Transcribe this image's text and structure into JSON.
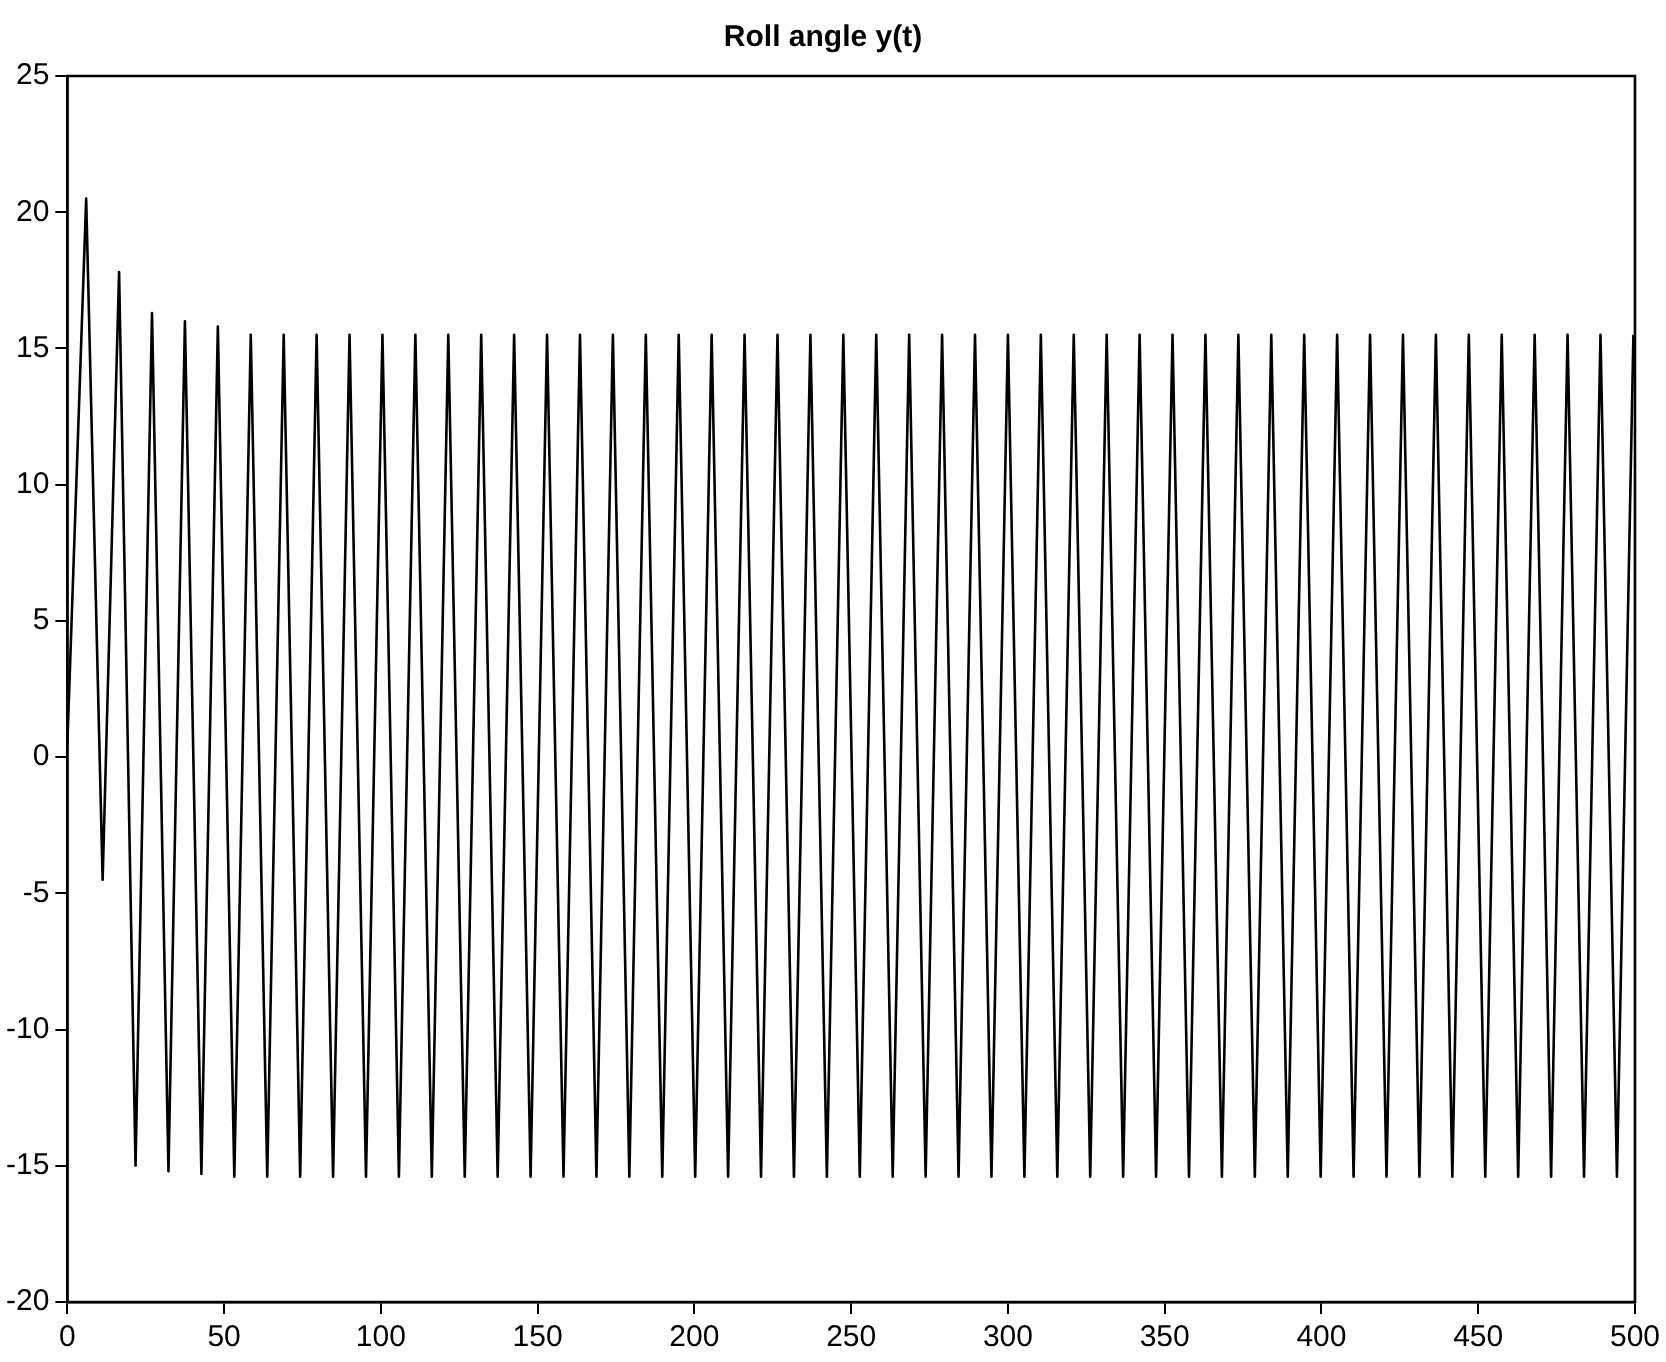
{
  "chart_data": {
    "type": "line",
    "title": "Roll angle y(t)",
    "x": [
      0,
      6,
      11.25,
      16.5,
      21.75,
      27,
      32.25,
      37.5,
      42.75,
      48,
      53.25,
      58.5,
      63.75,
      69,
      74.25,
      79.5,
      84.75,
      90,
      95.25,
      100.5,
      105.75,
      111,
      116.25,
      121.5,
      126.75,
      132,
      137.25,
      142.5,
      147.75,
      153,
      158.25,
      163.5,
      168.75,
      174,
      179.25,
      184.5,
      189.75,
      195,
      200.25,
      205.5,
      210.75,
      216,
      221.25,
      226.5,
      231.75,
      237,
      242.25,
      247.5,
      252.75,
      258,
      263.25,
      268.5,
      273.75,
      279,
      284.25,
      289.5,
      294.75,
      300,
      305.25,
      310.5,
      315.75,
      321,
      326.25,
      331.5,
      336.75,
      342,
      347.25,
      352.5,
      357.75,
      363,
      368.25,
      373.5,
      378.75,
      384,
      389.25,
      394.5,
      399.75,
      405,
      410.25,
      415.5,
      420.75,
      426,
      431.25,
      436.5,
      441.75,
      447,
      452.25,
      457.5,
      462.75,
      468,
      473.25,
      478.5,
      483.75,
      489,
      494.25,
      499.5
    ],
    "series": [
      {
        "color": "#000000",
        "values": [
          0.5,
          20.5,
          -4.5,
          17.8,
          -15.0,
          16.3,
          -15.2,
          16.0,
          -15.3,
          15.8,
          -15.4,
          15.5,
          -15.4,
          15.5,
          -15.4,
          15.5,
          -15.4,
          15.5,
          -15.4,
          15.5,
          -15.4,
          15.5,
          -15.4,
          15.5,
          -15.4,
          15.5,
          -15.4,
          15.5,
          -15.4,
          15.5,
          -15.4,
          15.5,
          -15.4,
          15.5,
          -15.4,
          15.5,
          -15.4,
          15.5,
          -15.4,
          15.5,
          -15.4,
          15.5,
          -15.4,
          15.5,
          -15.4,
          15.5,
          -15.4,
          15.5,
          -15.4,
          15.5,
          -15.4,
          15.5,
          -15.4,
          15.5,
          -15.4,
          15.5,
          -15.4,
          15.5,
          -15.4,
          15.5,
          -15.4,
          15.5,
          -15.4,
          15.5,
          -15.4,
          15.5,
          -15.4,
          15.5,
          -15.4,
          15.5,
          -15.4,
          15.5,
          -15.4,
          15.5,
          -15.4,
          15.5,
          -15.4,
          15.5,
          -15.4,
          15.5,
          -15.4,
          15.5,
          -15.4,
          15.5,
          -15.4,
          15.5,
          -15.4,
          15.5,
          -15.4,
          15.5,
          -15.4,
          15.5,
          -15.4,
          15.5,
          -15.4,
          15.5
        ]
      }
    ],
    "xlim": [
      0,
      500
    ],
    "xticks": [
      0,
      50,
      100,
      150,
      200,
      250,
      300,
      350,
      400,
      450,
      500
    ],
    "ylim": [
      -20,
      25
    ],
    "yticks": [
      -20,
      -15,
      -10,
      -5,
      0,
      5,
      10,
      15,
      20,
      25
    ],
    "grid": false,
    "legend": false,
    "marker": "none",
    "line_style": "solid"
  }
}
